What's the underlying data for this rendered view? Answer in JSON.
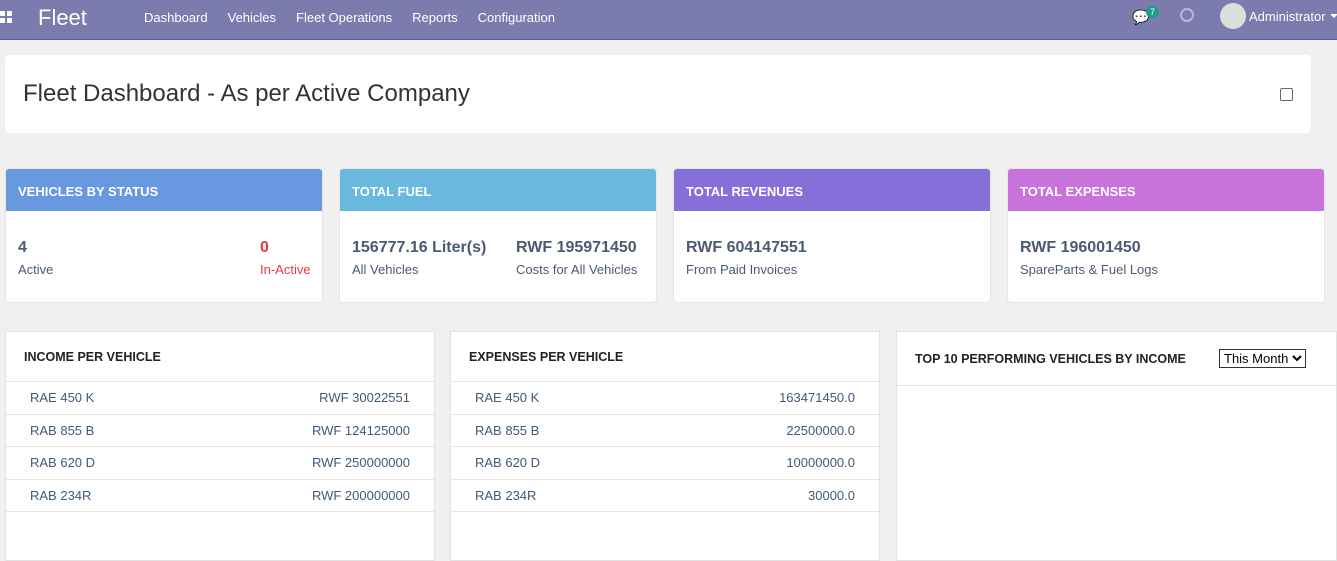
{
  "nav": {
    "brand": "Fleet",
    "menu": [
      "Dashboard",
      "Vehicles",
      "Fleet Operations",
      "Reports",
      "Configuration"
    ],
    "messages_count": "7",
    "user": "Administrator"
  },
  "page": {
    "title": "Fleet Dashboard - As per Active Company"
  },
  "colors": {
    "navbar": "#7c7bad",
    "status": "#6898e0",
    "fuel": "#69b8de",
    "revenues": "#8470d8",
    "expenses": "#c873db",
    "inactive": "#e03c3c"
  },
  "cards": {
    "status": {
      "title": "VEHICLES BY STATUS",
      "active_value": "4",
      "active_label": "Active",
      "inactive_value": "0",
      "inactive_label": "In-Active"
    },
    "fuel": {
      "title": "TOTAL FUEL",
      "liters": "156777.16 Liter(s)",
      "liters_label": "All Vehicles",
      "cost": "RWF 195971450",
      "cost_label": "Costs for All Vehicles"
    },
    "revenues": {
      "title": "TOTAL REVENUES",
      "value": "RWF 604147551",
      "label": "From Paid Invoices"
    },
    "expenses": {
      "title": "TOTAL EXPENSES",
      "value": "RWF 196001450",
      "label": "SpareParts & Fuel Logs"
    }
  },
  "income": {
    "title": "INCOME PER VEHICLE",
    "rows": [
      [
        "RAE 450 K",
        "RWF 30022551"
      ],
      [
        "RAB 855 B",
        "RWF 124125000"
      ],
      [
        "RAB 620 D",
        "RWF 250000000"
      ],
      [
        "RAB 234R",
        "RWF 200000000"
      ]
    ]
  },
  "expenses": {
    "title": "EXPENSES PER VEHICLE",
    "rows": [
      [
        "RAE 450 K",
        "163471450.0"
      ],
      [
        "RAB 855 B",
        "22500000.0"
      ],
      [
        "RAB 620 D",
        "10000000.0"
      ],
      [
        "RAB 234R",
        "30000.0"
      ]
    ]
  },
  "top10": {
    "title": "TOP 10 PERFORMING VEHICLES BY INCOME",
    "period": "This Month"
  }
}
